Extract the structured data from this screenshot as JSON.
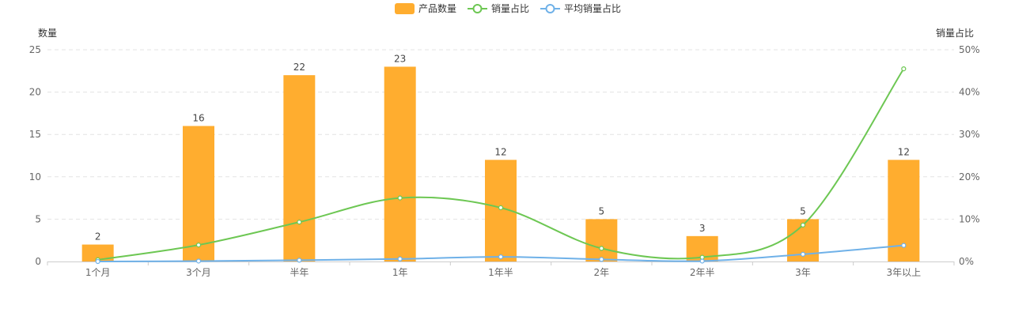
{
  "chart_data": {
    "type": "bar",
    "categories": [
      "1个月",
      "3个月",
      "半年",
      "1年",
      "1年半",
      "2年",
      "2年半",
      "3年",
      "3年以上"
    ],
    "left_axis": {
      "name": "数量",
      "min": 0,
      "max": 25,
      "ticks": [
        "0",
        "5",
        "10",
        "15",
        "20",
        "25"
      ]
    },
    "right_axis": {
      "name": "销量占比",
      "min": 0,
      "max": 50,
      "ticks": [
        "0%",
        "10%",
        "20%",
        "30%",
        "40%",
        "50%"
      ]
    },
    "series": [
      {
        "name": "产品数量",
        "kind": "bar",
        "axis": "left",
        "color": "#FFAD2F",
        "values": [
          2,
          16,
          22,
          23,
          12,
          5,
          3,
          5,
          12
        ]
      },
      {
        "name": "销量占比",
        "kind": "line",
        "axis": "right",
        "color": "#6DC753",
        "values": [
          0.4,
          3.9,
          9.3,
          15.0,
          12.7,
          3.1,
          1.0,
          8.6,
          45.5
        ]
      },
      {
        "name": "平均销量占比",
        "kind": "line",
        "axis": "right",
        "color": "#6FB1E8",
        "values": [
          0.0,
          0.1,
          0.3,
          0.6,
          1.1,
          0.5,
          0.1,
          1.7,
          3.8
        ]
      }
    ],
    "bar_labels": [
      "2",
      "16",
      "22",
      "23",
      "12",
      "5",
      "3",
      "5",
      "12"
    ],
    "grid": true,
    "legend_position": "top-center"
  }
}
